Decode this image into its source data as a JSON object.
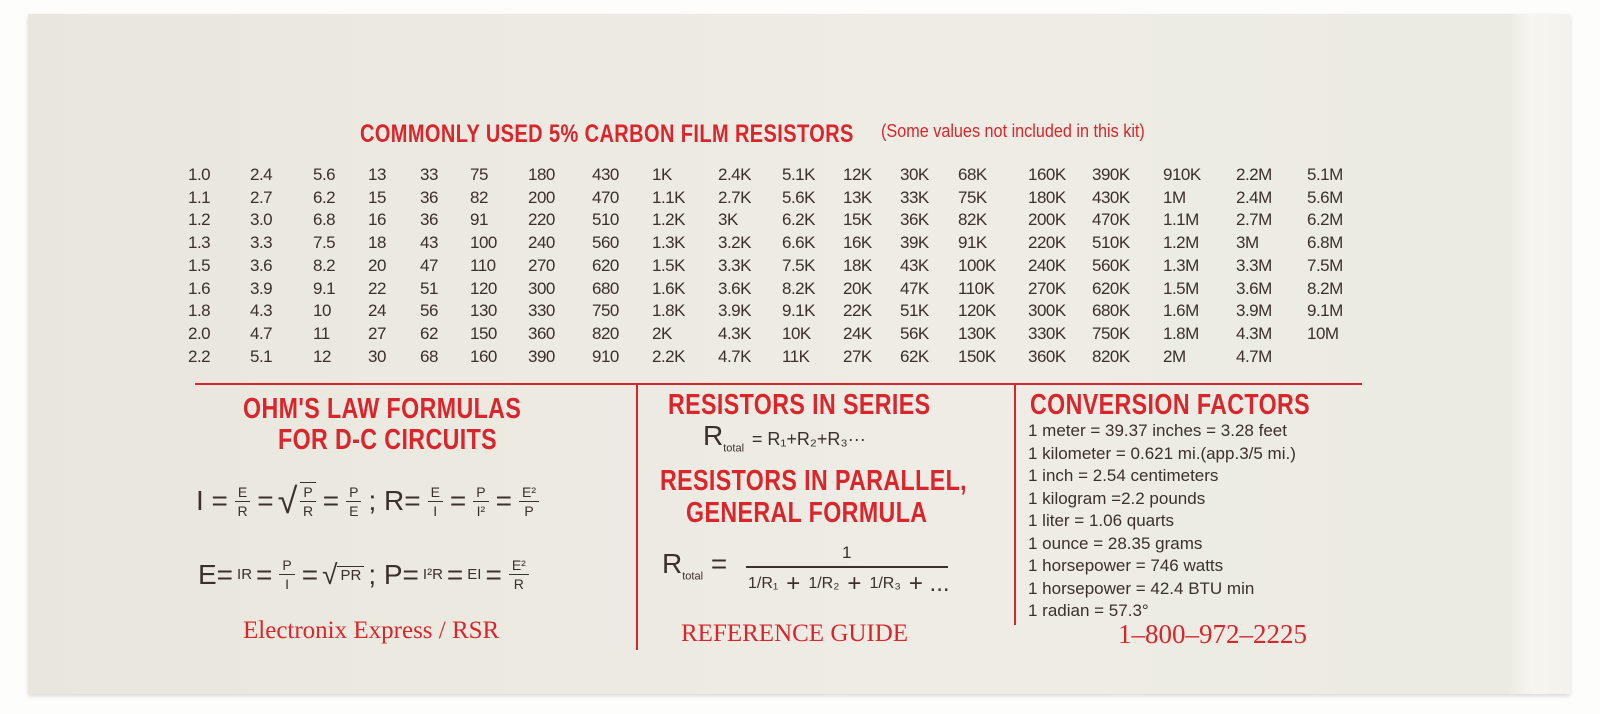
{
  "title": "COMMONLY USED 5% CARBON FILM RESISTORS",
  "subtitle": "(Some values not included in this kit)",
  "resistor_table": [
    [
      "1.0",
      "2.4",
      "5.6",
      "13",
      "33",
      "75",
      "180",
      "430",
      "1K",
      "2.4K",
      "5.1K",
      "12K",
      "30K",
      "68K",
      "160K",
      "390K",
      "910K",
      "2.2M",
      "5.1M"
    ],
    [
      "1.1",
      "2.7",
      "6.2",
      "15",
      "36",
      "82",
      "200",
      "470",
      "1.1K",
      "2.7K",
      "5.6K",
      "13K",
      "33K",
      "75K",
      "180K",
      "430K",
      "1M",
      "2.4M",
      "5.6M"
    ],
    [
      "1.2",
      "3.0",
      "6.8",
      "16",
      "36",
      "91",
      "220",
      "510",
      "1.2K",
      "3K",
      "6.2K",
      "15K",
      "36K",
      "82K",
      "200K",
      "470K",
      "1.1M",
      "2.7M",
      "6.2M"
    ],
    [
      "1.3",
      "3.3",
      "7.5",
      "18",
      "43",
      "100",
      "240",
      "560",
      "1.3K",
      "3.2K",
      "6.6K",
      "16K",
      "39K",
      "91K",
      "220K",
      "510K",
      "1.2M",
      "3M",
      "6.8M"
    ],
    [
      "1.5",
      "3.6",
      "8.2",
      "20",
      "47",
      "110",
      "270",
      "620",
      "1.5K",
      "3.3K",
      "7.5K",
      "18K",
      "43K",
      "100K",
      "240K",
      "560K",
      "1.3M",
      "3.3M",
      "7.5M"
    ],
    [
      "1.6",
      "3.9",
      "9.1",
      "22",
      "51",
      "120",
      "300",
      "680",
      "1.6K",
      "3.6K",
      "8.2K",
      "20K",
      "47K",
      "110K",
      "270K",
      "620K",
      "1.5M",
      "3.6M",
      "8.2M"
    ],
    [
      "1.8",
      "4.3",
      "10",
      "24",
      "56",
      "130",
      "330",
      "750",
      "1.8K",
      "3.9K",
      "9.1K",
      "22K",
      "51K",
      "120K",
      "300K",
      "680K",
      "1.6M",
      "3.9M",
      "9.1M"
    ],
    [
      "2.0",
      "4.7",
      "11",
      "27",
      "62",
      "150",
      "360",
      "820",
      "2K",
      "4.3K",
      "10K",
      "24K",
      "56K",
      "130K",
      "330K",
      "750K",
      "1.8M",
      "4.3M",
      "10M"
    ],
    [
      "2.2",
      "5.1",
      "12",
      "30",
      "68",
      "160",
      "390",
      "910",
      "2.2K",
      "4.7K",
      "11K",
      "27K",
      "62K",
      "150K",
      "360K",
      "820K",
      "2M",
      "4.7M",
      ""
    ]
  ],
  "ohms": {
    "heading_1": "OHM'S LAW FORMULAS",
    "heading_2": "FOR D-C CIRCUITS",
    "formula_1": [
      {
        "t": "I ="
      },
      {
        "n": "E",
        "d": "R"
      },
      {
        "t": "="
      },
      {
        "sqrt_frac": {
          "n": "P",
          "d": "R"
        }
      },
      {
        "t": "="
      },
      {
        "n": "P",
        "d": "E"
      },
      {
        "t": " ; R="
      },
      {
        "n": "E",
        "d": "I"
      },
      {
        "t": "="
      },
      {
        "n": "P",
        "d": "I²"
      },
      {
        "t": "="
      },
      {
        "n": "E²",
        "d": "P"
      }
    ],
    "formula_2": [
      {
        "t": "E="
      },
      {
        "s": "IR"
      },
      {
        "t": "="
      },
      {
        "n": "P",
        "d": "I"
      },
      {
        "t": "="
      },
      {
        "sqrt": "PR"
      },
      {
        "t": " ; P="
      },
      {
        "s": "I²R"
      },
      {
        "t": "="
      },
      {
        "s": "EI"
      },
      {
        "t": "="
      },
      {
        "n": "E²",
        "d": "R"
      }
    ]
  },
  "series": {
    "heading": "RESISTORS IN SERIES",
    "R": "R",
    "sub": "total",
    "rhs": "= R₁+R₂+R₃···"
  },
  "parallel": {
    "heading_1": "RESISTORS IN PARALLEL,",
    "heading_2": "GENERAL FORMULA",
    "R": "R",
    "sub": "total",
    "eq": "=",
    "numerator": "1",
    "terms": [
      "1/R₁",
      "1/R₂",
      "1/R₃"
    ],
    "plus": "+",
    "tail": "+ ..."
  },
  "conversion": {
    "heading": "CONVERSION FACTORS",
    "items": [
      "1 meter = 39.37  inches = 3.28 feet",
      "1 kilometer = 0.621 mi.(app.3/5 mi.)",
      "1 inch = 2.54 centimeters",
      "1 kilogram =2.2 pounds",
      "1 liter = 1.06 quarts",
      "1 ounce = 28.35 grams",
      "1 horsepower = 746 watts",
      "1 horsepower = 42.4 BTU min",
      "1 radian = 57.3°"
    ]
  },
  "footer": {
    "brand": "Electronix Express / RSR",
    "guide": "REFERENCE GUIDE",
    "phone": "1–800–972–2225"
  },
  "colors": {
    "accent": "#d8262c",
    "text": "#3a302c",
    "box": "#ecebe3"
  }
}
